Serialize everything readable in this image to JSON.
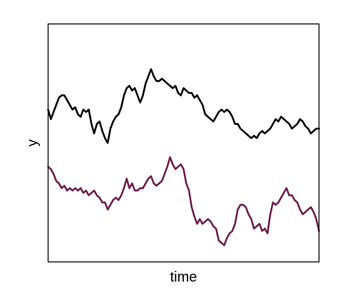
{
  "chart_data": {
    "type": "line",
    "title": "",
    "xlabel": "time",
    "ylabel": "y",
    "xlim": [
      0,
      1
    ],
    "ylim": [
      0,
      1
    ],
    "x_ticks": false,
    "y_ticks": false,
    "grid": false,
    "legend": "none",
    "series": [
      {
        "color": "#000000",
        "x": [
          0.0,
          0.01,
          0.02,
          0.03,
          0.04,
          0.05,
          0.06,
          0.07,
          0.08,
          0.09,
          0.1,
          0.11,
          0.12,
          0.13,
          0.14,
          0.15,
          0.16,
          0.17,
          0.18,
          0.19,
          0.2,
          0.21,
          0.22,
          0.23,
          0.24,
          0.25,
          0.26,
          0.27,
          0.28,
          0.29,
          0.3,
          0.31,
          0.32,
          0.33,
          0.34,
          0.35,
          0.36,
          0.37,
          0.38,
          0.39,
          0.4,
          0.41,
          0.42,
          0.43,
          0.44,
          0.45,
          0.46,
          0.47,
          0.48,
          0.49,
          0.5,
          0.51,
          0.52,
          0.53,
          0.54,
          0.55,
          0.56,
          0.57,
          0.58,
          0.59,
          0.6,
          0.61,
          0.62,
          0.63,
          0.64,
          0.65,
          0.66,
          0.67,
          0.68,
          0.69,
          0.7,
          0.71,
          0.72,
          0.73,
          0.74,
          0.75,
          0.76,
          0.77,
          0.78,
          0.79,
          0.8,
          0.81,
          0.82,
          0.83,
          0.84,
          0.85,
          0.86,
          0.87,
          0.88,
          0.89,
          0.9,
          0.91,
          0.92,
          0.93,
          0.94,
          0.95,
          0.96,
          0.97,
          0.98,
          0.99,
          1.0
        ],
        "y": [
          0.64,
          0.6,
          0.63,
          0.66,
          0.69,
          0.7,
          0.7,
          0.68,
          0.66,
          0.64,
          0.65,
          0.62,
          0.61,
          0.64,
          0.63,
          0.64,
          0.58,
          0.54,
          0.58,
          0.59,
          0.55,
          0.52,
          0.5,
          0.56,
          0.59,
          0.61,
          0.62,
          0.65,
          0.7,
          0.73,
          0.74,
          0.72,
          0.73,
          0.7,
          0.67,
          0.7,
          0.75,
          0.78,
          0.81,
          0.78,
          0.76,
          0.76,
          0.77,
          0.76,
          0.75,
          0.74,
          0.73,
          0.74,
          0.71,
          0.7,
          0.73,
          0.72,
          0.71,
          0.71,
          0.69,
          0.7,
          0.68,
          0.66,
          0.62,
          0.61,
          0.6,
          0.59,
          0.61,
          0.63,
          0.64,
          0.63,
          0.64,
          0.63,
          0.61,
          0.58,
          0.58,
          0.56,
          0.55,
          0.54,
          0.53,
          0.52,
          0.53,
          0.52,
          0.54,
          0.55,
          0.54,
          0.55,
          0.56,
          0.58,
          0.6,
          0.59,
          0.61,
          0.6,
          0.59,
          0.58,
          0.56,
          0.57,
          0.58,
          0.6,
          0.59,
          0.57,
          0.56,
          0.54,
          0.55,
          0.56,
          0.56
        ]
      },
      {
        "color": "#6d1f4d",
        "x": [
          0.0,
          0.01,
          0.02,
          0.03,
          0.04,
          0.05,
          0.06,
          0.07,
          0.08,
          0.09,
          0.1,
          0.11,
          0.12,
          0.13,
          0.14,
          0.15,
          0.16,
          0.17,
          0.18,
          0.19,
          0.2,
          0.21,
          0.22,
          0.23,
          0.24,
          0.25,
          0.26,
          0.27,
          0.28,
          0.29,
          0.3,
          0.31,
          0.32,
          0.33,
          0.34,
          0.35,
          0.36,
          0.37,
          0.38,
          0.39,
          0.4,
          0.41,
          0.42,
          0.43,
          0.44,
          0.45,
          0.46,
          0.47,
          0.48,
          0.49,
          0.5,
          0.51,
          0.52,
          0.53,
          0.54,
          0.55,
          0.56,
          0.57,
          0.58,
          0.59,
          0.6,
          0.61,
          0.62,
          0.63,
          0.64,
          0.65,
          0.66,
          0.67,
          0.68,
          0.69,
          0.7,
          0.71,
          0.72,
          0.73,
          0.74,
          0.75,
          0.76,
          0.77,
          0.78,
          0.79,
          0.8,
          0.81,
          0.82,
          0.83,
          0.84,
          0.85,
          0.86,
          0.87,
          0.88,
          0.89,
          0.9,
          0.91,
          0.92,
          0.93,
          0.94,
          0.95,
          0.96,
          0.97,
          0.98,
          0.99,
          1.0
        ],
        "y": [
          0.4,
          0.39,
          0.37,
          0.34,
          0.33,
          0.31,
          0.32,
          0.3,
          0.31,
          0.3,
          0.31,
          0.3,
          0.31,
          0.29,
          0.3,
          0.28,
          0.29,
          0.3,
          0.28,
          0.27,
          0.25,
          0.25,
          0.22,
          0.24,
          0.26,
          0.27,
          0.26,
          0.28,
          0.31,
          0.35,
          0.31,
          0.33,
          0.3,
          0.3,
          0.31,
          0.31,
          0.33,
          0.35,
          0.36,
          0.33,
          0.32,
          0.33,
          0.34,
          0.37,
          0.4,
          0.44,
          0.41,
          0.39,
          0.4,
          0.41,
          0.39,
          0.33,
          0.3,
          0.23,
          0.19,
          0.16,
          0.18,
          0.16,
          0.17,
          0.18,
          0.17,
          0.15,
          0.14,
          0.09,
          0.08,
          0.07,
          0.1,
          0.12,
          0.13,
          0.16,
          0.22,
          0.24,
          0.24,
          0.23,
          0.2,
          0.18,
          0.14,
          0.15,
          0.16,
          0.13,
          0.14,
          0.12,
          0.2,
          0.25,
          0.24,
          0.25,
          0.27,
          0.29,
          0.31,
          0.28,
          0.28,
          0.26,
          0.25,
          0.22,
          0.2,
          0.21,
          0.22,
          0.23,
          0.21,
          0.18,
          0.13
        ]
      }
    ]
  }
}
